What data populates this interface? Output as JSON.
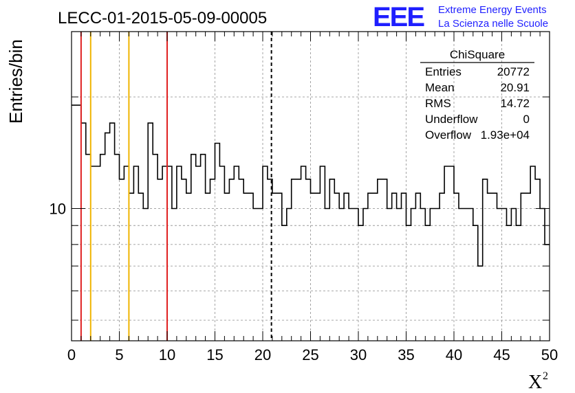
{
  "header": {
    "run_title": "LECC-01-2015-05-09-00005",
    "logo_text": "EEE",
    "logo_line1": "Extreme Energy Events",
    "logo_line2": "La Scienza nelle Scuole",
    "logo_color": "#1f1fff"
  },
  "stats_box": {
    "title": "ChiSquare",
    "rows": [
      {
        "label": "Entries",
        "value": "20772"
      },
      {
        "label": "Mean",
        "value": "20.91"
      },
      {
        "label": "RMS",
        "value": "14.72"
      },
      {
        "label": "Underflow",
        "value": "0"
      },
      {
        "label": "Overflow",
        "value": "1.93e+04"
      }
    ]
  },
  "chart_data": {
    "type": "histogram",
    "title": "LECC-01-2015-05-09-00005",
    "xlabel": "X",
    "xlabel_superscript": "2",
    "ylabel": "Entries/bin",
    "xlim": [
      0,
      50
    ],
    "ylim": [
      4.4,
      30
    ],
    "log_y": true,
    "grid": true,
    "x_ticks": [
      0,
      5,
      10,
      15,
      20,
      25,
      30,
      35,
      40,
      45,
      50
    ],
    "y_tick_labels": [
      10
    ],
    "bin_width": 0.5,
    "values": [
      19,
      19,
      17,
      14,
      13,
      13,
      14,
      16,
      17,
      14,
      12,
      13,
      11,
      13,
      11,
      10,
      17,
      14,
      12,
      13,
      13,
      10,
      13,
      12,
      11,
      14,
      13,
      14,
      11,
      12,
      15,
      13,
      11,
      12,
      13,
      12,
      11,
      11,
      10,
      10,
      13,
      12,
      11,
      11,
      9,
      10,
      12,
      12,
      13,
      12,
      11,
      11,
      13,
      10,
      12,
      11,
      10,
      11,
      10,
      10,
      9,
      10,
      11,
      11,
      12,
      12,
      10,
      11,
      10,
      11,
      9,
      10,
      11,
      10,
      9,
      10,
      10,
      11,
      13,
      13,
      11,
      10,
      10,
      10,
      9,
      7,
      12,
      11,
      11,
      10,
      10,
      9,
      10,
      9,
      11,
      11,
      13,
      12,
      10,
      8
    ],
    "reference_lines": [
      {
        "x": 1,
        "color": "#e02020",
        "style": "solid"
      },
      {
        "x": 2,
        "color": "#f0b400",
        "style": "solid"
      },
      {
        "x": 6,
        "color": "#f0b400",
        "style": "solid"
      },
      {
        "x": 10,
        "color": "#e02020",
        "style": "solid"
      },
      {
        "x": 20.91,
        "color": "#000000",
        "style": "dashed"
      }
    ]
  }
}
